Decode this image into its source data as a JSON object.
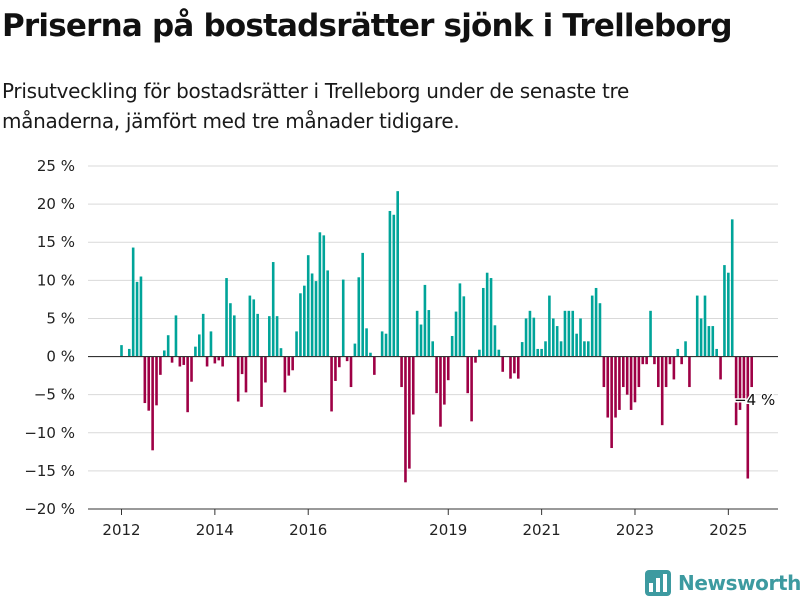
{
  "title": "Priserna på bostadsrätter sjönk i Trelleborg",
  "subtitle": "Prisutveckling för bostadsrätter i Trelleborg under de senaste tre månaderna, jämfört med tre månader tidigare.",
  "brand": {
    "name": "Newsworthy",
    "color": "#3d9aa0",
    "icon": "bar-chart-logo-icon"
  },
  "colors": {
    "positive": "#00a499",
    "negative": "#9e0045",
    "grid": "#d9d9d9",
    "zero_line": "#333333"
  },
  "chart_data": {
    "type": "bar",
    "title": "",
    "xlabel": "",
    "ylabel": "",
    "ylim": [
      -20,
      25
    ],
    "yticks": [
      25,
      20,
      15,
      10,
      5,
      0,
      -5,
      -10,
      -15,
      -20
    ],
    "ytick_labels": [
      "25 %",
      "20 %",
      "15 %",
      "10 %",
      "5 %",
      "0 %",
      "−5 %",
      "−10 %",
      "−15 %",
      "−20 %"
    ],
    "xticks": [
      "2012",
      "2014",
      "2016",
      "2019",
      "2021",
      "2023",
      "2025"
    ],
    "xtick_positions_month_index": [
      0,
      24,
      48,
      84,
      108,
      132,
      156
    ],
    "grid": true,
    "legend": "none",
    "first_month": "2012-01",
    "frequency": "monthly",
    "last_value_label": "−4 %",
    "values": [
      1.5,
      0,
      1.0,
      14.3,
      9.8,
      10.5,
      -6.1,
      -7.1,
      -12.3,
      -6.4,
      -2.4,
      0.8,
      2.8,
      -0.8,
      5.4,
      -1.3,
      -1.1,
      -7.3,
      -3.3,
      1.3,
      2.9,
      5.6,
      -1.3,
      3.3,
      -0.9,
      -0.5,
      -1.3,
      10.3,
      7.0,
      5.4,
      -5.9,
      -2.3,
      -4.7,
      8.0,
      7.5,
      5.6,
      -6.6,
      -3.4,
      5.3,
      12.4,
      5.3,
      1.1,
      -4.7,
      -2.5,
      -1.8,
      3.3,
      8.3,
      9.3,
      13.3,
      10.9,
      9.9,
      16.3,
      15.9,
      11.3,
      -7.2,
      -3.2,
      -1.4,
      10.1,
      -0.6,
      -4.0,
      1.7,
      10.4,
      13.6,
      3.7,
      0.5,
      -2.4,
      0,
      3.3,
      3.0,
      19.1,
      18.6,
      21.7,
      -4.0,
      -16.5,
      -14.7,
      -7.6,
      6.0,
      4.2,
      9.4,
      6.1,
      2.0,
      -4.8,
      -9.2,
      -6.3,
      -3.1,
      2.7,
      5.9,
      9.6,
      7.9,
      -4.8,
      -8.5,
      -0.8,
      0.9,
      9.0,
      11.0,
      10.3,
      4.1,
      0.9,
      -2.0,
      0,
      -2.9,
      -2.2,
      -2.9,
      1.9,
      5.0,
      6.0,
      5.1,
      1.0,
      1.0,
      2.0,
      8.0,
      5.0,
      4.0,
      2.0,
      6.0,
      6.0,
      6.0,
      3.0,
      5.0,
      2.0,
      2.0,
      8.0,
      9.0,
      7.0,
      -4.0,
      -8.0,
      -12.0,
      -8.0,
      -7.0,
      -4.0,
      -5.0,
      -7.0,
      -6.0,
      -4.0,
      -1.0,
      -1.0,
      6.0,
      -1.0,
      -4.0,
      -9.0,
      -4.0,
      -1.0,
      -3.0,
      1.0,
      -1.0,
      2.0,
      -4.0,
      0,
      8.0,
      5.0,
      8.0,
      4.0,
      4.0,
      1.0,
      -3.0,
      12.0,
      11.0,
      18.0,
      -9.0,
      -7.0,
      -6.0,
      -16.0,
      -4.0
    ]
  }
}
